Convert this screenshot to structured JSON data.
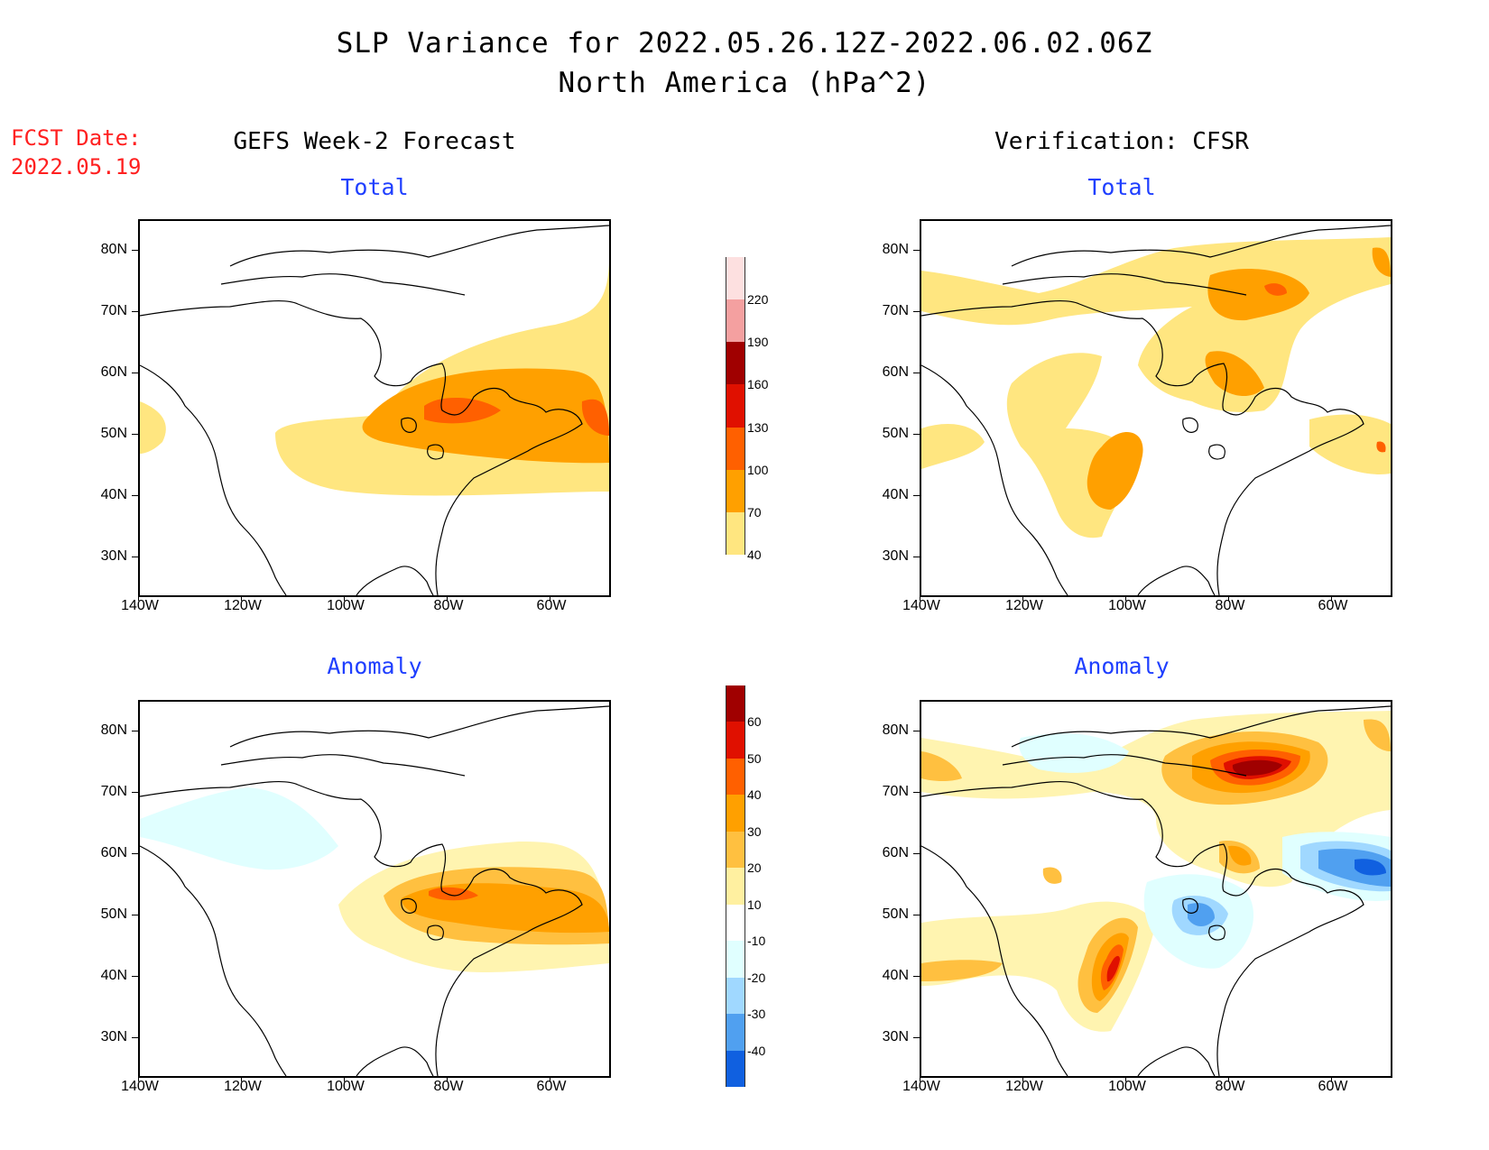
{
  "header": {
    "title": "SLP Variance for 2022.05.26.12Z-2022.06.02.06Z",
    "subtitle": "North America (hPa^2)",
    "fcst_label": "FCST Date:",
    "fcst_date": "2022.05.19"
  },
  "columns": {
    "left": "GEFS Week-2 Forecast",
    "right": "Verification: CFSR"
  },
  "panels": {
    "total_label": "Total",
    "anomaly_label": "Anomaly"
  },
  "axes": {
    "lat_labels": [
      "80N",
      "70N",
      "60N",
      "50N",
      "40N",
      "30N"
    ],
    "lon_labels": [
      "140W",
      "120W",
      "100W",
      "80W",
      "60W"
    ]
  },
  "colorbars": {
    "total": {
      "levels": [
        "40",
        "70",
        "100",
        "130",
        "160",
        "190",
        "220"
      ],
      "colors": [
        "#ffe680",
        "#ffa000",
        "#ff6000",
        "#e01000",
        "#a00000",
        "#f4a0a0",
        "#fde0e0"
      ]
    },
    "anomaly": {
      "levels": [
        "60",
        "50",
        "40",
        "30",
        "20",
        "10",
        "-10",
        "-20",
        "-30",
        "-40"
      ],
      "colors": [
        "#a00000",
        "#e01000",
        "#ff6000",
        "#ffa000",
        "#ffc040",
        "#fff0a0",
        "#ffffff",
        "#e0ffff",
        "#a0d8ff",
        "#50a0f0",
        "#1060e0"
      ]
    }
  },
  "palette": {
    "yellow": "#ffe680",
    "lightyellow": "#fff4b0",
    "orange": "#ffa000",
    "lightorange": "#ffc040",
    "redorange": "#ff6000",
    "red": "#e01000",
    "darkred": "#a00000",
    "lightcyan": "#e0ffff",
    "lightblue": "#a0d8ff",
    "blue": "#50a0f0",
    "darkblue": "#1060e0"
  }
}
